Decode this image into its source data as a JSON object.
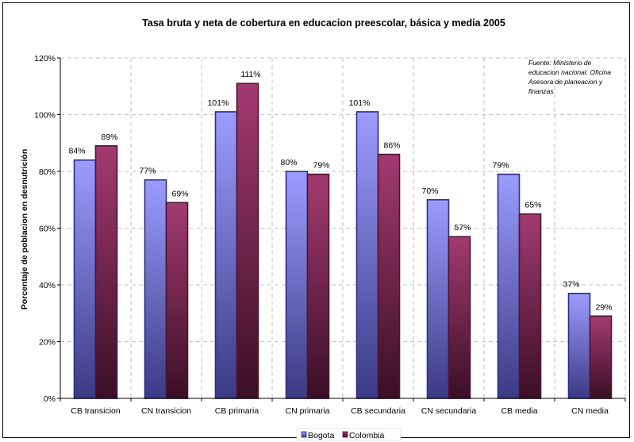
{
  "chart_data": {
    "type": "bar",
    "title": "Tasa bruta y neta de cobertura en educacion preescolar, básica y media 2005",
    "ylabel": "Porcentaje de poblacion en desnutrición",
    "xlabel": "",
    "ylim": [
      0,
      120
    ],
    "yticks": [
      0,
      20,
      40,
      60,
      80,
      100,
      120
    ],
    "ytick_suffix": "%",
    "grid": true,
    "legend_position": "bottom",
    "categories": [
      "CB transicion",
      "CN transicion",
      "CB primaria",
      "CN primaria",
      "CB secundaria",
      "CN secundaria",
      "CB media",
      "CN media"
    ],
    "series": [
      {
        "name": "Bogota",
        "color": "#8f8fff",
        "values": [
          84,
          77,
          101,
          80,
          101,
          70,
          79,
          37
        ],
        "labels": [
          "84%",
          "77%",
          "101%",
          "80%",
          "101%",
          "70%",
          "79%",
          "37%"
        ]
      },
      {
        "name": "Colombia",
        "color": "#993366",
        "values": [
          89,
          69,
          111,
          79,
          86,
          57,
          65,
          29
        ],
        "labels": [
          "89%",
          "69%",
          "111%",
          "79%",
          "86%",
          "57%",
          "65%",
          "29%"
        ]
      }
    ],
    "annotation": {
      "lines": [
        "Fuente:  Ministerio de",
        "educacion nacional. Oficina",
        "Asesora de planeacion y",
        "finanzas"
      ]
    }
  }
}
